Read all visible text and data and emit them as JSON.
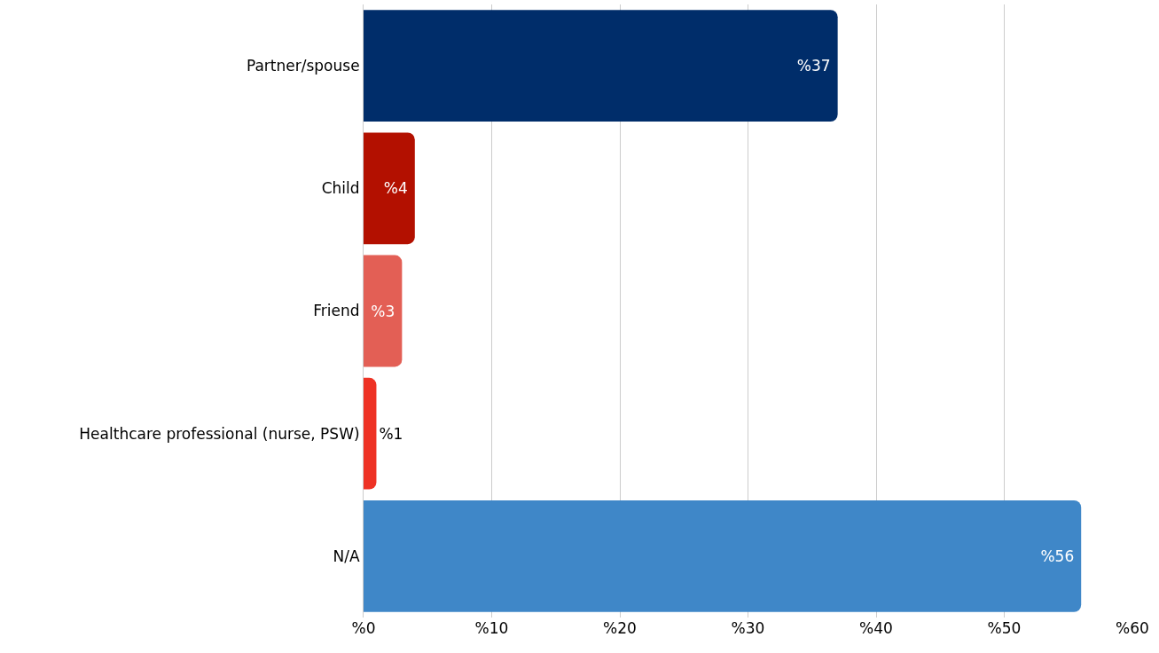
{
  "chart_data": {
    "type": "bar",
    "orientation": "horizontal",
    "categories": [
      "Partner/spouse",
      "Child",
      "Friend",
      "Healthcare professional (nurse, PSW)",
      "N/A"
    ],
    "values": [
      37,
      4,
      3,
      1,
      56
    ],
    "colors": [
      "#002d6a",
      "#b31000",
      "#e35f55",
      "#ee3224",
      "#3f87c8"
    ],
    "value_labels": [
      "%37",
      "%4",
      "%3",
      "%1",
      "%56"
    ],
    "xlim": [
      0,
      60
    ],
    "xticks": [
      {
        "value": 0,
        "label": "%0"
      },
      {
        "value": 10,
        "label": "%10"
      },
      {
        "value": 20,
        "label": "%20"
      },
      {
        "value": 30,
        "label": "%30"
      },
      {
        "value": 40,
        "label": "%40"
      },
      {
        "value": 50,
        "label": "%50"
      },
      {
        "value": 60,
        "label": "%60"
      }
    ],
    "grid": "x",
    "legend": false
  }
}
